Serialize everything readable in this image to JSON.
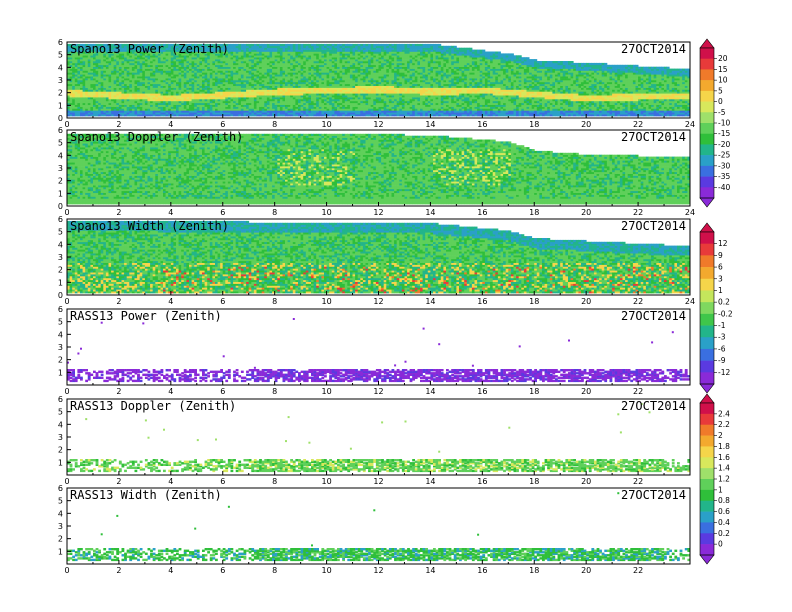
{
  "date": "27OCT2014",
  "x_ticks": [
    "0",
    "2",
    "4",
    "6",
    "8",
    "10",
    "12",
    "14",
    "16",
    "18",
    "20",
    "22",
    "24"
  ],
  "x_ticks_rass": [
    "0",
    "2",
    "4",
    "6",
    "8",
    "10",
    "12",
    "14",
    "16",
    "18",
    "20",
    "22"
  ],
  "y_ticks": [
    "0",
    "1",
    "2",
    "3",
    "4",
    "5",
    "6"
  ],
  "y_ticks_rass": [
    "1",
    "2",
    "3",
    "4",
    "5",
    "6"
  ],
  "colorbars": [
    {
      "labels": [
        "20",
        "15",
        "10",
        "5",
        "0",
        "-5",
        "-10",
        "-15",
        "-20",
        "-25",
        "-30",
        "-35",
        "-40"
      ],
      "colors": [
        "#d0104a",
        "#e83a3a",
        "#f07a2a",
        "#f3a92e",
        "#f5d54a",
        "#d8e85c",
        "#9fe06a",
        "#5fd05a",
        "#2fbf3a",
        "#22b58a",
        "#2aa0c8",
        "#3a6fe0",
        "#5a3ae0",
        "#8a2ad8"
      ]
    },
    {
      "labels": [
        "12",
        "9",
        "6",
        "3",
        "1",
        "0.2",
        "-0.2",
        "-1",
        "-3",
        "-6",
        "-9",
        "-12"
      ],
      "colors": [
        "#d0104a",
        "#e83a3a",
        "#f07a2a",
        "#f3a92e",
        "#f5d54a",
        "#c4e65c",
        "#7fd85f",
        "#3fc64a",
        "#22b58a",
        "#2aa0c8",
        "#3a6fe0",
        "#5a3ae0",
        "#8a2ad8"
      ]
    },
    {
      "labels": [
        "2.4",
        "2.2",
        "2",
        "1.8",
        "1.6",
        "1.4",
        "1.2",
        "1",
        "0.8",
        "0.6",
        "0.4",
        "0.2",
        "0"
      ],
      "colors": [
        "#d0104a",
        "#e83a3a",
        "#f07a2a",
        "#f3a92e",
        "#f5d54a",
        "#d8e85c",
        "#9fe06a",
        "#5fd05a",
        "#2fbf3a",
        "#22b58a",
        "#2aa0c8",
        "#3a6fe0",
        "#5a3ae0",
        "#8a2ad8"
      ]
    }
  ],
  "chart_data": [
    {
      "type": "heatmap",
      "title": "Spano13 Power (Zenith)",
      "date_label": "27OCT2014",
      "xlim": [
        0,
        24
      ],
      "ylim": [
        0,
        6
      ],
      "colorbar": 0,
      "top_height_km": [
        [
          0,
          5.8
        ],
        [
          6,
          5.8
        ],
        [
          14,
          5.8
        ],
        [
          17,
          5.0
        ],
        [
          18,
          4.5
        ],
        [
          20,
          4.3
        ],
        [
          24,
          3.8
        ]
      ],
      "bright_band_km": [
        [
          0,
          1.9
        ],
        [
          4,
          1.5
        ],
        [
          8,
          2.0
        ],
        [
          12,
          2.2
        ],
        [
          14,
          2.0
        ],
        [
          16,
          2.1
        ],
        [
          20,
          1.5
        ],
        [
          24,
          1.7
        ]
      ]
    },
    {
      "type": "heatmap",
      "title": "Spano13 Doppler (Zenith)",
      "date_label": "27OCT2014",
      "xlim": [
        0,
        24
      ],
      "ylim": [
        0,
        6
      ],
      "colorbar": 0,
      "top_height_km": [
        [
          0,
          5.6
        ],
        [
          12,
          5.6
        ],
        [
          14,
          5.5
        ],
        [
          17,
          5.0
        ],
        [
          18,
          4.3
        ],
        [
          20,
          4.0
        ],
        [
          24,
          3.8
        ]
      ]
    },
    {
      "type": "heatmap",
      "title": "Spano13 Width (Zenith)",
      "date_label": "27OCT2014",
      "xlim": [
        0,
        24
      ],
      "ylim": [
        0,
        6
      ],
      "colorbar": 1,
      "top_height_km": [
        [
          0,
          5.8
        ],
        [
          14,
          5.6
        ],
        [
          17,
          5.0
        ],
        [
          18,
          4.4
        ],
        [
          20,
          4.2
        ],
        [
          24,
          3.8
        ]
      ]
    },
    {
      "type": "heatmap",
      "title": "RASS13 Power (Zenith)",
      "date_label": "27OCT2014",
      "xlim": [
        0,
        24
      ],
      "ylim": [
        0,
        6
      ],
      "colorbar": 1,
      "band_km": [
        0.3,
        1.2
      ]
    },
    {
      "type": "heatmap",
      "title": "RASS13 Doppler (Zenith)",
      "date_label": "27OCT2014",
      "xlim": [
        0,
        24
      ],
      "ylim": [
        0,
        6
      ],
      "colorbar": 2,
      "band_km": [
        0.3,
        1.2
      ]
    },
    {
      "type": "heatmap",
      "title": "RASS13 Width (Zenith)",
      "date_label": "27OCT2014",
      "xlim": [
        0,
        24
      ],
      "ylim": [
        0,
        6
      ],
      "colorbar": 2,
      "band_km": [
        0.3,
        1.2
      ]
    }
  ]
}
